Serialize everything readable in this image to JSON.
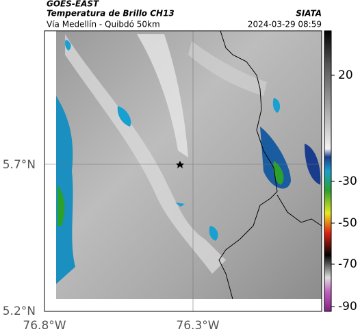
{
  "header": {
    "source": "GOES-EAST",
    "title": "Temperatura de Brillo CH13",
    "agency": "SIATA",
    "subtitle": "Vía Medellín - Quibdó 50km",
    "timestamp": "2024-03-29 08:59"
  },
  "map": {
    "lat_labels": [
      "5.7°N",
      "5.2°N"
    ],
    "lon_labels": [
      "76.8°W",
      "76.3°W"
    ]
  },
  "colorbar": {
    "labels": [
      "20",
      "-30",
      "-50",
      "-70",
      "-90"
    ]
  }
}
